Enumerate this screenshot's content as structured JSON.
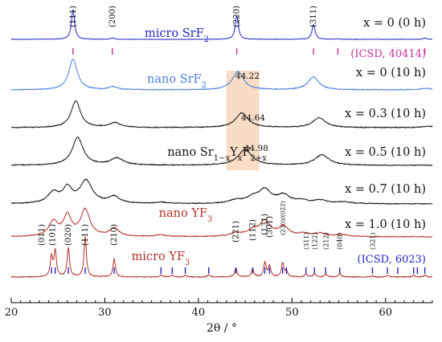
{
  "chart_data": {
    "type": "line",
    "title": "",
    "xlabel": "2θ / °",
    "ylabel": "",
    "xlim": [
      20,
      65
    ],
    "x_ticks": [
      20,
      30,
      40,
      50,
      60
    ],
    "grid": false,
    "series": [
      {
        "name": "micro SrF2",
        "condition": "x = 0 (0 h)",
        "color": "#2424c8",
        "peaks": [
          {
            "pos": 26.6,
            "h": 1.0,
            "w": 0.2
          },
          {
            "pos": 30.8,
            "h": 0.05,
            "w": 0.2
          },
          {
            "pos": 44.1,
            "h": 0.8,
            "w": 0.2
          },
          {
            "pos": 52.3,
            "h": 0.5,
            "w": 0.2
          },
          {
            "pos": 54.9,
            "h": 0.02,
            "w": 0.2
          },
          {
            "pos": 64.2,
            "h": 0.04,
            "w": 0.2
          }
        ]
      },
      {
        "name": "nano SrF2",
        "condition": "x = 0 (10 h)",
        "color": "#4a7de0",
        "peaks": [
          {
            "pos": 26.6,
            "h": 1.0,
            "w": 0.55
          },
          {
            "pos": 30.9,
            "h": 0.1,
            "w": 0.55
          },
          {
            "pos": 44.22,
            "h": 0.6,
            "w": 0.7
          },
          {
            "pos": 52.3,
            "h": 0.42,
            "w": 0.7
          },
          {
            "pos": 64.3,
            "h": 0.05,
            "w": 0.7
          }
        ]
      },
      {
        "name": "",
        "condition": "x = 0.3 (10 h)",
        "color": "#111111",
        "peaks": [
          {
            "pos": 26.9,
            "h": 1.0,
            "w": 0.6
          },
          {
            "pos": 31.1,
            "h": 0.18,
            "w": 0.7
          },
          {
            "pos": 44.64,
            "h": 0.55,
            "w": 0.8
          },
          {
            "pos": 52.9,
            "h": 0.37,
            "w": 0.8
          },
          {
            "pos": 64.6,
            "h": 0.05,
            "w": 0.8
          }
        ]
      },
      {
        "name": "nano Sr1−xYxF2+x",
        "condition": "x = 0.5 (10 h)",
        "color": "#111111",
        "peaks": [
          {
            "pos": 27.1,
            "h": 1.0,
            "w": 0.7
          },
          {
            "pos": 31.3,
            "h": 0.25,
            "w": 0.8
          },
          {
            "pos": 44.98,
            "h": 0.55,
            "w": 0.9
          },
          {
            "pos": 53.2,
            "h": 0.37,
            "w": 0.9
          }
        ]
      },
      {
        "name": "",
        "condition": "x = 0.7 (10 h)",
        "color": "#111111",
        "peaks": [
          {
            "pos": 24.5,
            "h": 0.4,
            "w": 0.7
          },
          {
            "pos": 26.0,
            "h": 0.55,
            "w": 0.6
          },
          {
            "pos": 28.0,
            "h": 0.85,
            "w": 0.8
          },
          {
            "pos": 31.0,
            "h": 0.25,
            "w": 0.7
          },
          {
            "pos": 36.0,
            "h": 0.05,
            "w": 0.7
          },
          {
            "pos": 44.0,
            "h": 0.12,
            "w": 0.8
          },
          {
            "pos": 45.8,
            "h": 0.2,
            "w": 0.8
          },
          {
            "pos": 47.1,
            "h": 0.5,
            "w": 0.8
          },
          {
            "pos": 49.1,
            "h": 0.3,
            "w": 0.8
          },
          {
            "pos": 51.0,
            "h": 0.1,
            "w": 0.8
          },
          {
            "pos": 53.0,
            "h": 0.12,
            "w": 0.9
          },
          {
            "pos": 55.5,
            "h": 0.06,
            "w": 0.9
          }
        ]
      },
      {
        "name": "nano YF3",
        "condition": "x = 1.0 (10 h)",
        "color": "#b5312a",
        "peaks": [
          {
            "pos": 24.5,
            "h": 0.55,
            "w": 0.6
          },
          {
            "pos": 26.0,
            "h": 0.75,
            "w": 0.5
          },
          {
            "pos": 27.9,
            "h": 1.0,
            "w": 0.6
          },
          {
            "pos": 31.0,
            "h": 0.3,
            "w": 0.6
          },
          {
            "pos": 35.9,
            "h": 0.06,
            "w": 0.7
          },
          {
            "pos": 44.0,
            "h": 0.12,
            "w": 0.7
          },
          {
            "pos": 45.8,
            "h": 0.2,
            "w": 0.7
          },
          {
            "pos": 47.1,
            "h": 0.55,
            "w": 0.7
          },
          {
            "pos": 49.1,
            "h": 0.35,
            "w": 0.7
          },
          {
            "pos": 51.3,
            "h": 0.1,
            "w": 0.7
          },
          {
            "pos": 53.0,
            "h": 0.12,
            "w": 0.7
          },
          {
            "pos": 55.4,
            "h": 0.07,
            "w": 0.8
          }
        ]
      },
      {
        "name": "micro YF3",
        "condition": "",
        "color": "#b5312a",
        "peaks": [
          {
            "pos": 24.3,
            "h": 0.5,
            "w": 0.15
          },
          {
            "pos": 24.7,
            "h": 0.65,
            "w": 0.15
          },
          {
            "pos": 26.1,
            "h": 0.72,
            "w": 0.15
          },
          {
            "pos": 27.9,
            "h": 1.0,
            "w": 0.15
          },
          {
            "pos": 31.0,
            "h": 0.45,
            "w": 0.15
          },
          {
            "pos": 36.0,
            "h": 0.05,
            "w": 0.15
          },
          {
            "pos": 37.2,
            "h": 0.04,
            "w": 0.15
          },
          {
            "pos": 38.6,
            "h": 0.04,
            "w": 0.15
          },
          {
            "pos": 41.1,
            "h": 0.05,
            "w": 0.15
          },
          {
            "pos": 44.0,
            "h": 0.22,
            "w": 0.15
          },
          {
            "pos": 45.8,
            "h": 0.2,
            "w": 0.15
          },
          {
            "pos": 47.1,
            "h": 0.36,
            "w": 0.15
          },
          {
            "pos": 47.6,
            "h": 0.28,
            "w": 0.15
          },
          {
            "pos": 49.0,
            "h": 0.34,
            "w": 0.15
          },
          {
            "pos": 49.4,
            "h": 0.14,
            "w": 0.15
          },
          {
            "pos": 51.5,
            "h": 0.08,
            "w": 0.15
          },
          {
            "pos": 52.4,
            "h": 0.08,
            "w": 0.15
          },
          {
            "pos": 53.6,
            "h": 0.07,
            "w": 0.15
          },
          {
            "pos": 55.1,
            "h": 0.09,
            "w": 0.15
          },
          {
            "pos": 58.6,
            "h": 0.03,
            "w": 0.15
          },
          {
            "pos": 60.2,
            "h": 0.04,
            "w": 0.15
          },
          {
            "pos": 63.0,
            "h": 0.05,
            "w": 0.15
          },
          {
            "pos": 64.2,
            "h": 0.04,
            "w": 0.15
          }
        ]
      }
    ],
    "reference_ticks": [
      {
        "name": "(ICSD, 40414)",
        "color": "#c8329b",
        "positions": [
          26.6,
          30.8,
          44.1,
          52.3,
          54.9,
          64.2
        ]
      },
      {
        "name": "(ICSD, 6023)",
        "color": "#2424c8",
        "positions": [
          24.3,
          24.7,
          26.1,
          27.9,
          31.0,
          36.0,
          37.2,
          38.6,
          41.1,
          44.0,
          45.8,
          47.1,
          47.6,
          49.0,
          49.4,
          51.5,
          52.4,
          53.6,
          55.1,
          58.6,
          60.2,
          61.3,
          63.0,
          63.4,
          64.2
        ]
      }
    ],
    "miller_indices_SrF2": [
      {
        "label": "(111)",
        "pos": 26.6
      },
      {
        "label": "(200)",
        "pos": 30.8
      },
      {
        "label": "(220)",
        "pos": 44.1
      },
      {
        "label": "(311)",
        "pos": 52.3
      }
    ],
    "miller_indices_YF3": [
      {
        "label": "(011)",
        "pos": 24.3
      },
      {
        "label": "(101)",
        "pos": 24.7
      },
      {
        "label": "(020)",
        "pos": 26.1
      },
      {
        "label": "(111)",
        "pos": 27.9
      },
      {
        "label": "(210)",
        "pos": 31.0
      },
      {
        "label": "(221)",
        "pos": 44.0
      },
      {
        "label": "(112)",
        "pos": 45.8
      },
      {
        "label": "(131)",
        "pos": 47.1
      },
      {
        "label": "(301)",
        "pos": 47.6
      },
      {
        "label": "(230)/(022)",
        "pos": 49.0
      },
      {
        "label": "(311)",
        "pos": 51.5
      },
      {
        "label": "(122)",
        "pos": 52.4
      },
      {
        "label": "(212)",
        "pos": 53.6
      },
      {
        "label": "(040)",
        "pos": 55.1
      },
      {
        "label": "(321)",
        "pos": 58.6
      }
    ],
    "peak_annotations": [
      {
        "label": "44.22",
        "pos": 44.22
      },
      {
        "label": "44.64",
        "pos": 44.64
      },
      {
        "label": "44.98",
        "pos": 44.98
      }
    ],
    "highlight_range": [
      43.0,
      46.5
    ],
    "highlight_color": "#f7dcc6"
  }
}
